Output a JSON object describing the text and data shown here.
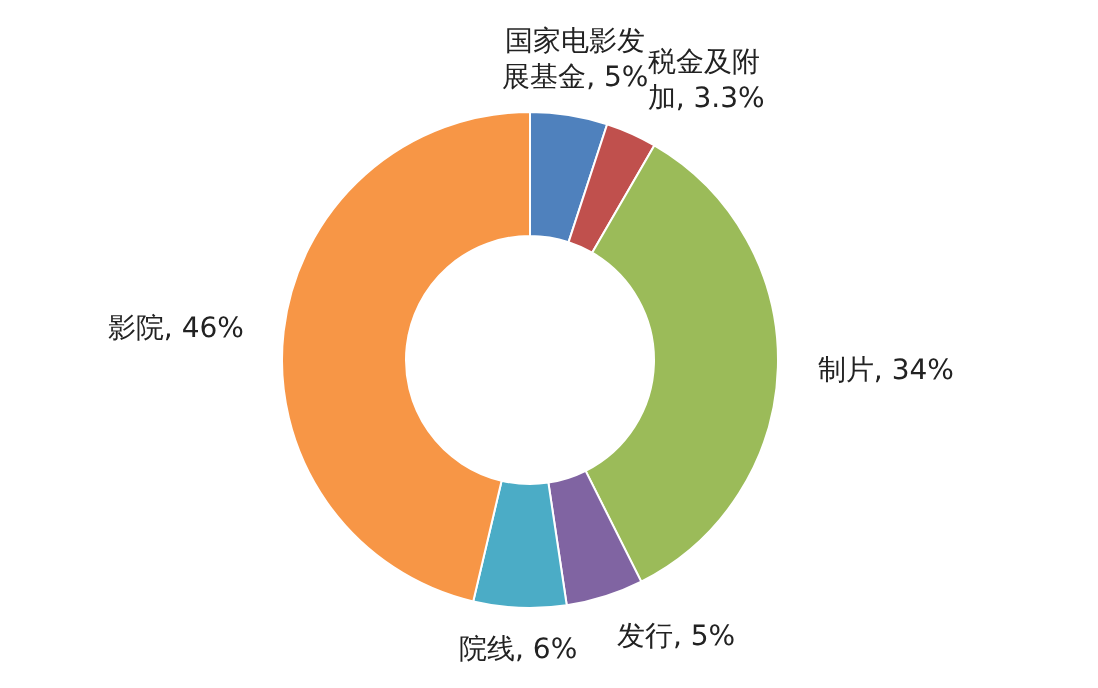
{
  "chart_data": {
    "type": "donut",
    "categories": [
      "国家电影发展基金",
      "税金及附加",
      "制片",
      "发行",
      "院线",
      "影院"
    ],
    "values": [
      5,
      3.3,
      34,
      5,
      6,
      46
    ],
    "value_labels": [
      "5%",
      "3.3%",
      "34%",
      "5%",
      "6%",
      "46%"
    ],
    "colors": [
      "#4f81bd",
      "#c0504d",
      "#9bbb59",
      "#8064a2",
      "#4bacc6",
      "#f79646"
    ]
  }
}
